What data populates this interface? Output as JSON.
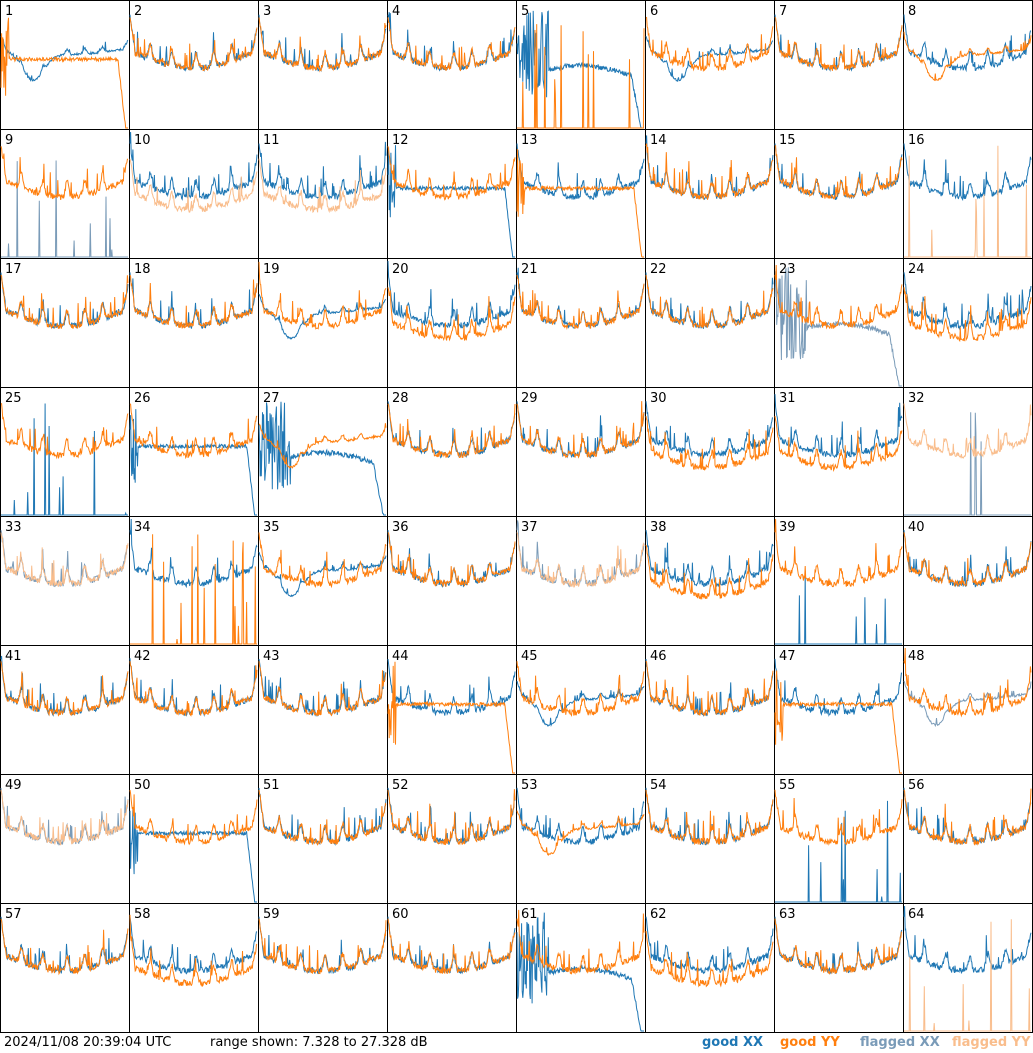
{
  "footer": {
    "timestamp": "2024/11/08 20:39:04 UTC",
    "range_text": "range shown: 7.328 to 27.328 dB"
  },
  "legend": [
    {
      "label": "good XX",
      "color": "#1f77b4"
    },
    {
      "label": "good YY",
      "color": "#ff7f0e"
    },
    {
      "label": "flagged XX",
      "color": "#7a9bb8"
    },
    {
      "label": "flagged YY",
      "color": "#f9bd8c"
    }
  ],
  "chart_data": {
    "type": "line",
    "ylim": [
      7.328,
      27.328
    ],
    "grid": "8x8 small multiples",
    "panels": [
      {
        "label": "1",
        "xx": "good",
        "yy": "good",
        "xx_mode": "dip",
        "yy_mode": "dropend"
      },
      {
        "label": "2",
        "xx": "good",
        "yy": "good",
        "xx_mode": "normal",
        "yy_mode": "normal"
      },
      {
        "label": "3",
        "xx": "good",
        "yy": "good",
        "xx_mode": "normal",
        "yy_mode": "normal"
      },
      {
        "label": "4",
        "xx": "good",
        "yy": "good",
        "xx_mode": "normal",
        "yy_mode": "normal"
      },
      {
        "label": "5",
        "xx": "good",
        "yy": "good",
        "xx_mode": "noisydip",
        "yy_mode": "spikes"
      },
      {
        "label": "6",
        "xx": "good",
        "yy": "good",
        "xx_mode": "dip",
        "yy_mode": "normal"
      },
      {
        "label": "7",
        "xx": "good",
        "yy": "good",
        "xx_mode": "normal",
        "yy_mode": "normal"
      },
      {
        "label": "8",
        "xx": "good",
        "yy": "good",
        "xx_mode": "normal",
        "yy_mode": "dip"
      },
      {
        "label": "9",
        "xx": "flagged",
        "yy": "good",
        "xx_mode": "spikes",
        "yy_mode": "normal"
      },
      {
        "label": "10",
        "xx": "good",
        "yy": "flagged",
        "xx_mode": "normal",
        "yy_mode": "low"
      },
      {
        "label": "11",
        "xx": "good",
        "yy": "flagged",
        "xx_mode": "normal",
        "yy_mode": "low"
      },
      {
        "label": "12",
        "xx": "good",
        "yy": "good",
        "xx_mode": "dropend",
        "yy_mode": "normal"
      },
      {
        "label": "13",
        "xx": "good",
        "yy": "good",
        "xx_mode": "normal",
        "yy_mode": "dropend"
      },
      {
        "label": "14",
        "xx": "good",
        "yy": "good",
        "xx_mode": "normal",
        "yy_mode": "normal"
      },
      {
        "label": "15",
        "xx": "good",
        "yy": "good",
        "xx_mode": "normal",
        "yy_mode": "normal"
      },
      {
        "label": "16",
        "xx": "good",
        "yy": "flagged",
        "xx_mode": "normal",
        "yy_mode": "spikes"
      },
      {
        "label": "17",
        "xx": "good",
        "yy": "good",
        "xx_mode": "normal",
        "yy_mode": "normal"
      },
      {
        "label": "18",
        "xx": "good",
        "yy": "good",
        "xx_mode": "normal",
        "yy_mode": "normal"
      },
      {
        "label": "19",
        "xx": "good",
        "yy": "good",
        "xx_mode": "dip",
        "yy_mode": "normal"
      },
      {
        "label": "20",
        "xx": "good",
        "yy": "good",
        "xx_mode": "normal",
        "yy_mode": "low"
      },
      {
        "label": "21",
        "xx": "good",
        "yy": "good",
        "xx_mode": "normal",
        "yy_mode": "normal"
      },
      {
        "label": "22",
        "xx": "good",
        "yy": "good",
        "xx_mode": "normal",
        "yy_mode": "normal"
      },
      {
        "label": "23",
        "xx": "flagged",
        "yy": "good",
        "xx_mode": "noisydip",
        "yy_mode": "normal"
      },
      {
        "label": "24",
        "xx": "good",
        "yy": "good",
        "xx_mode": "normal",
        "yy_mode": "low"
      },
      {
        "label": "25",
        "xx": "good",
        "yy": "good",
        "xx_mode": "spikes",
        "yy_mode": "normal"
      },
      {
        "label": "26",
        "xx": "good",
        "yy": "good",
        "xx_mode": "dropend",
        "yy_mode": "normal"
      },
      {
        "label": "27",
        "xx": "good",
        "yy": "good",
        "xx_mode": "noisydip",
        "yy_mode": "dip"
      },
      {
        "label": "28",
        "xx": "good",
        "yy": "good",
        "xx_mode": "normal",
        "yy_mode": "normal"
      },
      {
        "label": "29",
        "xx": "good",
        "yy": "good",
        "xx_mode": "normal",
        "yy_mode": "normal"
      },
      {
        "label": "30",
        "xx": "good",
        "yy": "good",
        "xx_mode": "normal",
        "yy_mode": "low"
      },
      {
        "label": "31",
        "xx": "good",
        "yy": "good",
        "xx_mode": "normal",
        "yy_mode": "low"
      },
      {
        "label": "32",
        "xx": "flagged",
        "yy": "flagged",
        "xx_mode": "spikes",
        "yy_mode": "normal"
      },
      {
        "label": "33",
        "xx": "flagged",
        "yy": "flagged",
        "xx_mode": "normal",
        "yy_mode": "normal"
      },
      {
        "label": "34",
        "xx": "good",
        "yy": "good",
        "xx_mode": "normal",
        "yy_mode": "spikes"
      },
      {
        "label": "35",
        "xx": "good",
        "yy": "good",
        "xx_mode": "dip",
        "yy_mode": "normal"
      },
      {
        "label": "36",
        "xx": "good",
        "yy": "good",
        "xx_mode": "normal",
        "yy_mode": "normal"
      },
      {
        "label": "37",
        "xx": "flagged",
        "yy": "flagged",
        "xx_mode": "normal",
        "yy_mode": "normal"
      },
      {
        "label": "38",
        "xx": "good",
        "yy": "good",
        "xx_mode": "normal",
        "yy_mode": "low"
      },
      {
        "label": "39",
        "xx": "good",
        "yy": "good",
        "xx_mode": "spikes",
        "yy_mode": "normal"
      },
      {
        "label": "40",
        "xx": "good",
        "yy": "good",
        "xx_mode": "normal",
        "yy_mode": "normal"
      },
      {
        "label": "41",
        "xx": "good",
        "yy": "good",
        "xx_mode": "normal",
        "yy_mode": "normal"
      },
      {
        "label": "42",
        "xx": "good",
        "yy": "good",
        "xx_mode": "normal",
        "yy_mode": "normal"
      },
      {
        "label": "43",
        "xx": "good",
        "yy": "good",
        "xx_mode": "normal",
        "yy_mode": "normal"
      },
      {
        "label": "44",
        "xx": "good",
        "yy": "good",
        "xx_mode": "normal",
        "yy_mode": "dropend"
      },
      {
        "label": "45",
        "xx": "good",
        "yy": "good",
        "xx_mode": "dip",
        "yy_mode": "normal"
      },
      {
        "label": "46",
        "xx": "good",
        "yy": "good",
        "xx_mode": "normal",
        "yy_mode": "normal"
      },
      {
        "label": "47",
        "xx": "good",
        "yy": "good",
        "xx_mode": "normal",
        "yy_mode": "dropend"
      },
      {
        "label": "48",
        "xx": "flagged",
        "yy": "good",
        "xx_mode": "dip",
        "yy_mode": "normal"
      },
      {
        "label": "49",
        "xx": "flagged",
        "yy": "flagged",
        "xx_mode": "normal",
        "yy_mode": "normal"
      },
      {
        "label": "50",
        "xx": "good",
        "yy": "good",
        "xx_mode": "dropend",
        "yy_mode": "normal"
      },
      {
        "label": "51",
        "xx": "good",
        "yy": "good",
        "xx_mode": "normal",
        "yy_mode": "normal"
      },
      {
        "label": "52",
        "xx": "good",
        "yy": "good",
        "xx_mode": "normal",
        "yy_mode": "normal"
      },
      {
        "label": "53",
        "xx": "good",
        "yy": "good",
        "xx_mode": "normal",
        "yy_mode": "dip"
      },
      {
        "label": "54",
        "xx": "good",
        "yy": "good",
        "xx_mode": "normal",
        "yy_mode": "normal"
      },
      {
        "label": "55",
        "xx": "good",
        "yy": "good",
        "xx_mode": "spikes",
        "yy_mode": "normal"
      },
      {
        "label": "56",
        "xx": "good",
        "yy": "good",
        "xx_mode": "normal",
        "yy_mode": "normal"
      },
      {
        "label": "57",
        "xx": "good",
        "yy": "good",
        "xx_mode": "normal",
        "yy_mode": "normal"
      },
      {
        "label": "58",
        "xx": "good",
        "yy": "good",
        "xx_mode": "normal",
        "yy_mode": "low"
      },
      {
        "label": "59",
        "xx": "good",
        "yy": "good",
        "xx_mode": "normal",
        "yy_mode": "normal"
      },
      {
        "label": "60",
        "xx": "good",
        "yy": "good",
        "xx_mode": "normal",
        "yy_mode": "normal"
      },
      {
        "label": "61",
        "xx": "good",
        "yy": "good",
        "xx_mode": "noisydip",
        "yy_mode": "normal"
      },
      {
        "label": "62",
        "xx": "good",
        "yy": "good",
        "xx_mode": "normal",
        "yy_mode": "low"
      },
      {
        "label": "63",
        "xx": "good",
        "yy": "good",
        "xx_mode": "normal",
        "yy_mode": "normal"
      },
      {
        "label": "64",
        "xx": "good",
        "yy": "flagged",
        "xx_mode": "normal",
        "yy_mode": "spikes"
      }
    ]
  }
}
